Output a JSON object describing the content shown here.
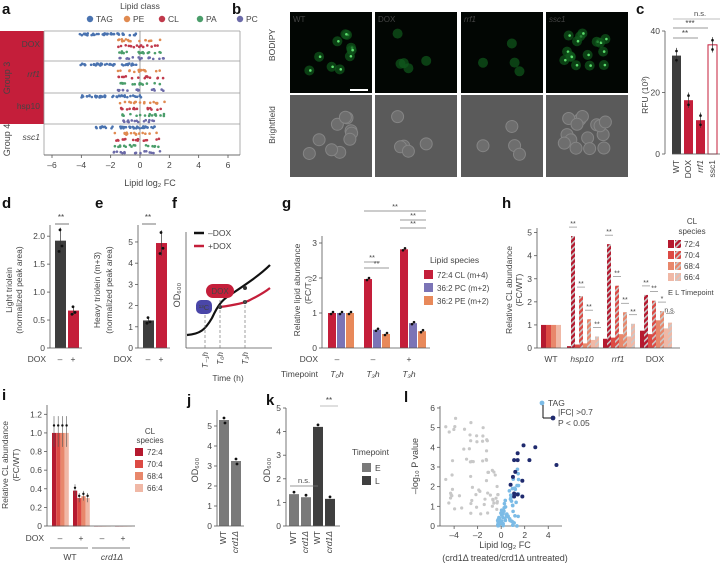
{
  "colors": {
    "red": "#c41e3a",
    "dark": "#3d3d3d",
    "purple": "#7b74b6",
    "orange": "#e8895a",
    "tag": "#4a73b0",
    "pe": "#e08a50",
    "cl": "#c0394b",
    "pa": "#4a9d6a",
    "pc": "#6b6aa8",
    "cl72": "#b5192f",
    "cl70": "#dc4a44",
    "cl68": "#e8876b",
    "cl66": "#f0b8a6",
    "grey": "#7a7a7a",
    "lightblue": "#7bbbe6",
    "navy": "#1f2a6e",
    "lightgrey": "#c8c8c8"
  },
  "panels": {
    "a": {
      "label": "a",
      "legend_title": "Lipid class",
      "legend": [
        "TAG",
        "PE",
        "CL",
        "PA",
        "PC"
      ],
      "groups": [
        {
          "name": "Group 3",
          "rows": [
            "DOX",
            "rrf1",
            "hsp10"
          ]
        },
        {
          "name": "Group 4",
          "rows": [
            "ssc1"
          ]
        }
      ],
      "xlabel": "Lipid log₂ FC",
      "xticks": [
        "-6",
        "-4",
        "-2",
        "0",
        "2",
        "4",
        "6"
      ]
    },
    "b": {
      "label": "b",
      "columns": [
        "WT",
        "DOX",
        "rrf1",
        "ssc1"
      ],
      "rows": [
        "BODIPY",
        "Brightfield"
      ]
    },
    "c": {
      "label": "c",
      "ylabel": "RFU (10³)",
      "yticks": [
        "0",
        "20",
        "40"
      ],
      "categories": [
        "WT",
        "DOX",
        "rrf1",
        "ssc1"
      ],
      "sig": [
        "**",
        "***",
        "n.s."
      ]
    },
    "d": {
      "label": "d",
      "ylabel": "Light triolein",
      "ylabel2": "(normalized peak area)",
      "yticks": [
        "0",
        "0.5",
        "1.0",
        "1.5",
        "2.0"
      ],
      "xlabel": "DOX",
      "xcats": [
        "–",
        "+"
      ],
      "sig": "**"
    },
    "e": {
      "label": "e",
      "ylabel": "Heavy triolein (m+3)",
      "ylabel2": "(normalized peak area)",
      "yticks": [
        "0",
        "1",
        "2",
        "3",
        "4",
        "5"
      ],
      "xlabel": "DOX",
      "xcats": [
        "–",
        "+"
      ],
      "sig": "**"
    },
    "f": {
      "label": "f",
      "legend": [
        "–DOX",
        "+DOX"
      ],
      "ylabel": "OD₆₀₀",
      "xlabel": "Time (h)",
      "xticks": [
        "T₋₁h",
        "T₀h",
        "T₃h"
      ],
      "tag_dox": "DOX",
      "tag_c13": "¹³C"
    },
    "g": {
      "label": "g",
      "ylabel": "Relative lipid abundance",
      "ylabel2": "(FC/T₀)",
      "yticks": [
        "0",
        "1",
        "2",
        "3"
      ],
      "dox_label": "DOX",
      "tp_label": "Timepoint",
      "dox": [
        "–",
        "–",
        "+"
      ],
      "tp": [
        "T₀h",
        "T₃h",
        "T₃h"
      ],
      "legend_title": "Lipid species",
      "legend": [
        "72:4 CL (m+4)",
        "36:2 PC (m+2)",
        "36:2 PE (m+2)"
      ],
      "sig": "**"
    },
    "h": {
      "label": "h",
      "ylabel": "Relative CL abundance",
      "ylabel2": "(FC/WT)",
      "yticks": [
        "0",
        "1",
        "2",
        "3",
        "4",
        "5"
      ],
      "groups": [
        "WT",
        "hsp10",
        "rrf1",
        "DOX"
      ],
      "legend_title": "CL species",
      "legend": [
        "72:4",
        "70:4",
        "68:4",
        "66:4"
      ],
      "legend_foot": "E  L  Timepoint",
      "sig": [
        "**",
        "*",
        "n.s."
      ]
    },
    "i": {
      "label": "i",
      "ylabel": "Relative CL abundance",
      "ylabel2": "(FC/WT)",
      "yticks": [
        "0",
        "0.2",
        "0.4",
        "0.6",
        "0.8",
        "1.0",
        "1.2"
      ],
      "dox_label": "DOX",
      "dox": [
        "–",
        "+",
        "–",
        "+"
      ],
      "groups": [
        "WT",
        "crd1Δ"
      ],
      "legend_title": "CL species",
      "legend": [
        "72:4",
        "70:4",
        "68:4",
        "66:4"
      ]
    },
    "j": {
      "label": "j",
      "ylabel": "OD₆₀₀",
      "yticks": [
        "0",
        "1",
        "2",
        "3",
        "4",
        "5"
      ],
      "categories": [
        "WT",
        "crd1Δ"
      ]
    },
    "k": {
      "label": "k",
      "ylabel": "OD₆₀₀",
      "yticks": [
        "0",
        "1",
        "2",
        "3",
        "4",
        "5"
      ],
      "categories": [
        "WT",
        "crd1Δ",
        "WT",
        "crd1Δ"
      ],
      "legend_title": "Timepoint",
      "legend": [
        "E",
        "L"
      ],
      "sig": [
        "n.s.",
        "**"
      ]
    },
    "l": {
      "label": "l",
      "ylabel": "–log₁₀ P value",
      "xlabel": "Lipid log₂ FC",
      "xlabel2": "(crd1Δ treated/crd1Δ untreated)",
      "yticks": [
        "0",
        "1",
        "2",
        "3",
        "4",
        "5",
        "6"
      ],
      "xticks": [
        "-4",
        "-2",
        "0",
        "2",
        "4"
      ],
      "legend": [
        "TAG",
        "|FC| >0.7",
        "P < 0.05"
      ]
    }
  },
  "chart_data": [
    {
      "panel": "c",
      "type": "bar",
      "title": "",
      "ylabel": "RFU (10^3)",
      "categories": [
        "WT",
        "DOX",
        "rrf1",
        "ssc1"
      ],
      "values": [
        32,
        17.5,
        11,
        35.5
      ],
      "ylim": [
        0,
        40
      ]
    },
    {
      "panel": "d",
      "type": "bar",
      "ylabel": "Light triolein (normalized peak area)",
      "categories": [
        "DOX -",
        "DOX +"
      ],
      "values": [
        1.92,
        0.67
      ],
      "ylim": [
        0,
        2.2
      ]
    },
    {
      "panel": "e",
      "type": "bar",
      "ylabel": "Heavy triolein (m+3) (normalized peak area)",
      "categories": [
        "DOX -",
        "DOX +"
      ],
      "values": [
        1.3,
        4.95
      ],
      "ylim": [
        0,
        5.8
      ]
    },
    {
      "panel": "f",
      "type": "line",
      "xlabel": "Time (h)",
      "ylabel": "OD600",
      "series": [
        {
          "name": "-DOX",
          "values": [
            0.1,
            0.2,
            0.45,
            0.62,
            0.8,
            1.0
          ]
        },
        {
          "name": "+DOX",
          "values": [
            null,
            null,
            0.45,
            0.5,
            0.56,
            0.72
          ]
        }
      ]
    },
    {
      "panel": "g",
      "type": "bar",
      "ylabel": "Relative lipid abundance (FC/T0)",
      "categories": [
        "T0h DOX-",
        "T3h DOX-",
        "T3h DOX+"
      ],
      "series": [
        {
          "name": "72:4 CL (m+4)",
          "values": [
            1.0,
            1.97,
            2.82
          ]
        },
        {
          "name": "36:2 PC (m+2)",
          "values": [
            1.0,
            0.52,
            0.71
          ]
        },
        {
          "name": "36:2 PE (m+2)",
          "values": [
            1.0,
            0.4,
            0.48
          ]
        }
      ],
      "ylim": [
        0,
        3.2
      ]
    },
    {
      "panel": "h",
      "type": "bar",
      "ylabel": "Relative CL abundance (FC/WT)",
      "categories": [
        "WT",
        "hsp10",
        "rrf1",
        "DOX"
      ],
      "series": [
        {
          "name": "72:4 E",
          "values": [
            1.0,
            0.08,
            0.4,
            0.75
          ]
        },
        {
          "name": "72:4 L",
          "values": [
            null,
            4.85,
            4.5,
            2.3
          ]
        },
        {
          "name": "70:4 E",
          "values": [
            1.0,
            0.15,
            0.45,
            0.6
          ]
        },
        {
          "name": "70:4 L",
          "values": [
            null,
            2.25,
            2.7,
            2.05
          ]
        },
        {
          "name": "68:4 E",
          "values": [
            1.0,
            0.2,
            0.6,
            1.2
          ]
        },
        {
          "name": "68:4 L",
          "values": [
            null,
            1.25,
            1.55,
            1.6
          ]
        },
        {
          "name": "66:4 E",
          "values": [
            1.0,
            0.35,
            0.5,
            0.85
          ]
        },
        {
          "name": "66:4 L",
          "values": [
            null,
            0.5,
            1.05,
            1.1
          ]
        }
      ],
      "ylim": [
        0,
        5.2
      ]
    },
    {
      "panel": "i",
      "type": "bar",
      "ylabel": "Relative CL abundance (FC/WT)",
      "categories": [
        "WT DOX-",
        "WT DOX+",
        "crd1Δ DOX-",
        "crd1Δ DOX+"
      ],
      "series": [
        {
          "name": "72:4",
          "values": [
            1.0,
            0.38,
            0,
            0
          ]
        },
        {
          "name": "70:4",
          "values": [
            1.0,
            0.3,
            0,
            0
          ]
        },
        {
          "name": "68:4",
          "values": [
            1.0,
            0.32,
            0,
            0
          ]
        },
        {
          "name": "66:4",
          "values": [
            1.0,
            0.3,
            0,
            0
          ]
        }
      ],
      "ylim": [
        0,
        1.3
      ]
    },
    {
      "panel": "j",
      "type": "bar",
      "ylabel": "OD600",
      "categories": [
        "WT",
        "crd1Δ"
      ],
      "values": [
        5.3,
        3.25
      ],
      "ylim": [
        0,
        5.8
      ]
    },
    {
      "panel": "k",
      "type": "bar",
      "ylabel": "OD600",
      "categories": [
        "WT E",
        "crd1Δ E",
        "WT L",
        "crd1Δ L"
      ],
      "values": [
        1.35,
        1.22,
        4.2,
        1.15
      ],
      "ylim": [
        0,
        5
      ]
    },
    {
      "panel": "l",
      "type": "scatter",
      "xlabel": "Lipid log2 FC (crd1Δ treated/crd1Δ untreated)",
      "ylabel": "-log10 P value",
      "xlim": [
        -5.2,
        5
      ],
      "ylim": [
        0,
        6.2
      ]
    }
  ]
}
